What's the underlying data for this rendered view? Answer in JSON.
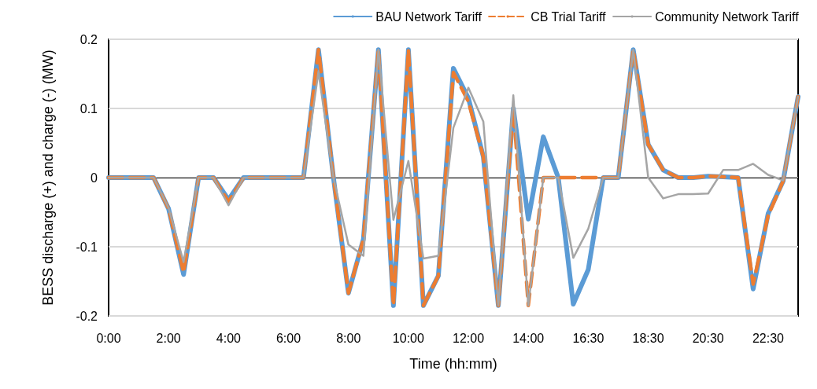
{
  "chart_data": {
    "type": "line",
    "xlabel": "Time (hh:mm)",
    "ylabel": "BESS discharge (+) and charge (-) (MW)",
    "categories": [
      "0:00",
      null,
      null,
      null,
      "2:00",
      null,
      null,
      null,
      "4:00",
      null,
      null,
      null,
      "6:00",
      null,
      null,
      null,
      "8:00",
      null,
      null,
      null,
      "10:00",
      null,
      null,
      null,
      "12:00",
      null,
      null,
      null,
      "14:00",
      null,
      null,
      null,
      "16:30",
      null,
      null,
      null,
      "18:30",
      null,
      null,
      null,
      "20:30",
      null,
      null,
      null,
      "22:30",
      null,
      null
    ],
    "series": [
      {
        "name": "BAU Network Tariff",
        "color": "#5b9bd5",
        "line_style": "solid",
        "values": [
          0,
          0,
          0,
          0,
          -0.045,
          -0.14,
          0,
          0,
          -0.032,
          0,
          0,
          0,
          0,
          0,
          0.185,
          0,
          -0.167,
          -0.089,
          0.185,
          -0.185,
          0.185,
          -0.185,
          -0.142,
          0.158,
          0.115,
          0.03,
          -0.185,
          0.1,
          -0.06,
          0.059,
          0,
          -0.183,
          -0.133,
          0,
          0,
          0.185,
          0.048,
          0.011,
          0,
          0,
          0.002,
          0.001,
          0,
          -0.161,
          -0.052,
          -0.005,
          0.117
        ]
      },
      {
        "name": "CB Trial Tariff",
        "color": "#ed7d31",
        "line_style": "dashed",
        "values": [
          0,
          0,
          0,
          0,
          -0.045,
          -0.137,
          0,
          0,
          -0.035,
          0,
          0,
          0,
          0,
          0,
          0.185,
          0,
          -0.167,
          -0.089,
          0.185,
          -0.185,
          0.185,
          -0.185,
          -0.142,
          0.152,
          0.11,
          0.03,
          -0.185,
          0.1,
          -0.185,
          0,
          0,
          0,
          0,
          0,
          0,
          0.185,
          0.048,
          0.011,
          0,
          0,
          0.002,
          0.001,
          0,
          -0.154,
          -0.055,
          -0.005,
          0.117
        ]
      },
      {
        "name": "Community Network Tariff",
        "color": "#a5a5a5",
        "line_style": "solid",
        "values": [
          0,
          0,
          0,
          0,
          -0.044,
          -0.122,
          0,
          0,
          -0.04,
          0,
          0,
          0,
          0,
          0,
          0.153,
          0,
          -0.097,
          -0.113,
          0.185,
          -0.061,
          0.024,
          -0.117,
          -0.113,
          0.072,
          0.13,
          0.081,
          -0.185,
          0.119,
          -0.185,
          0,
          0,
          -0.116,
          -0.074,
          0,
          0,
          0.185,
          0,
          -0.03,
          -0.024,
          -0.024,
          -0.023,
          0.011,
          0.011,
          0.02,
          0.004,
          -0.004,
          0.117
        ]
      }
    ],
    "ylim": [
      -0.2,
      0.2
    ],
    "yticks": [
      -0.2,
      -0.1,
      0,
      0.1,
      0.2
    ],
    "grid": "y",
    "legend": "top right",
    "marker": "none"
  }
}
